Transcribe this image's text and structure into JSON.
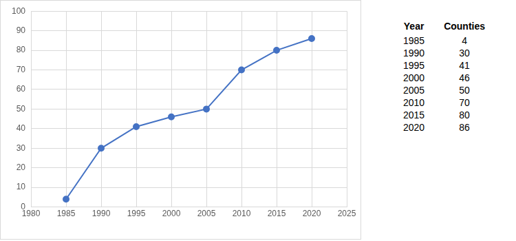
{
  "chart_data": {
    "type": "line",
    "x": [
      1985,
      1990,
      1995,
      2000,
      2005,
      2010,
      2015,
      2020
    ],
    "values": [
      4,
      30,
      41,
      46,
      50,
      70,
      80,
      86
    ],
    "color": "#4472c4",
    "marker": "circle",
    "xlim": [
      1980,
      2025
    ],
    "xticks": [
      1980,
      1985,
      1990,
      1995,
      2000,
      2005,
      2010,
      2015,
      2020,
      2025
    ],
    "ylim": [
      0,
      100
    ],
    "yticks": [
      0,
      10,
      20,
      30,
      40,
      50,
      60,
      70,
      80,
      90,
      100
    ],
    "grid": true
  },
  "table": {
    "header": [
      "Year",
      "Counties"
    ],
    "rows": [
      [
        1985,
        4
      ],
      [
        1990,
        30
      ],
      [
        1995,
        41
      ],
      [
        2000,
        46
      ],
      [
        2005,
        50
      ],
      [
        2010,
        70
      ],
      [
        2015,
        80
      ],
      [
        2020,
        86
      ]
    ]
  }
}
